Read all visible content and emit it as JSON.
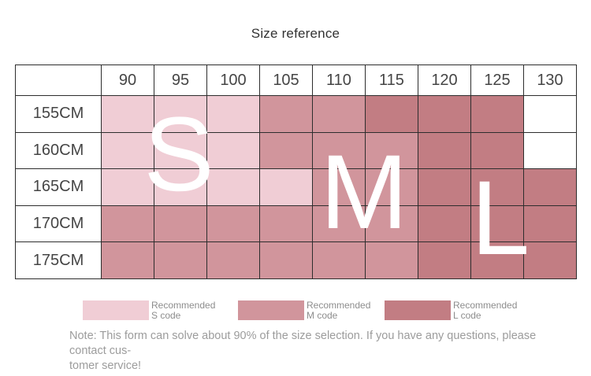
{
  "title": "Size reference",
  "colors": {
    "S": "#f0cdd5",
    "M": "#d1959c",
    "L": "#c27d83",
    "none": "#ffffff",
    "grid_line": "#2d2d2d",
    "header_text": "#454545",
    "letter_text": "#ffffff"
  },
  "table": {
    "col_headers": [
      "90",
      "95",
      "100",
      "105",
      "110",
      "115",
      "120",
      "125",
      "130"
    ],
    "row_headers": [
      "155CM",
      "160CM",
      "165CM",
      "170CM",
      "175CM"
    ],
    "zones": [
      [
        "S",
        "S",
        "S",
        "M",
        "M",
        "L",
        "L",
        "L",
        ""
      ],
      [
        "S",
        "S",
        "S",
        "M",
        "M",
        "M",
        "L",
        "L",
        ""
      ],
      [
        "S",
        "S",
        "S",
        "S",
        "M",
        "M",
        "L",
        "L",
        "L"
      ],
      [
        "M",
        "M",
        "M",
        "M",
        "M",
        "M",
        "L",
        "L",
        "L"
      ],
      [
        "M",
        "M",
        "M",
        "M",
        "M",
        "M",
        "L",
        "L",
        "L"
      ]
    ]
  },
  "overlay_letters": [
    "S",
    "M",
    "L"
  ],
  "legend": [
    {
      "code": "S",
      "line1": "Recommended",
      "line2": "S code"
    },
    {
      "code": "M",
      "line1": "Recommended",
      "line2": "M code"
    },
    {
      "code": "L",
      "line1": "Recommended",
      "line2": "L code"
    }
  ],
  "note_lines": [
    "Note: This form can solve about 90% of the size selection. If you have any questions, please contact cus-",
    "tomer service!"
  ]
}
